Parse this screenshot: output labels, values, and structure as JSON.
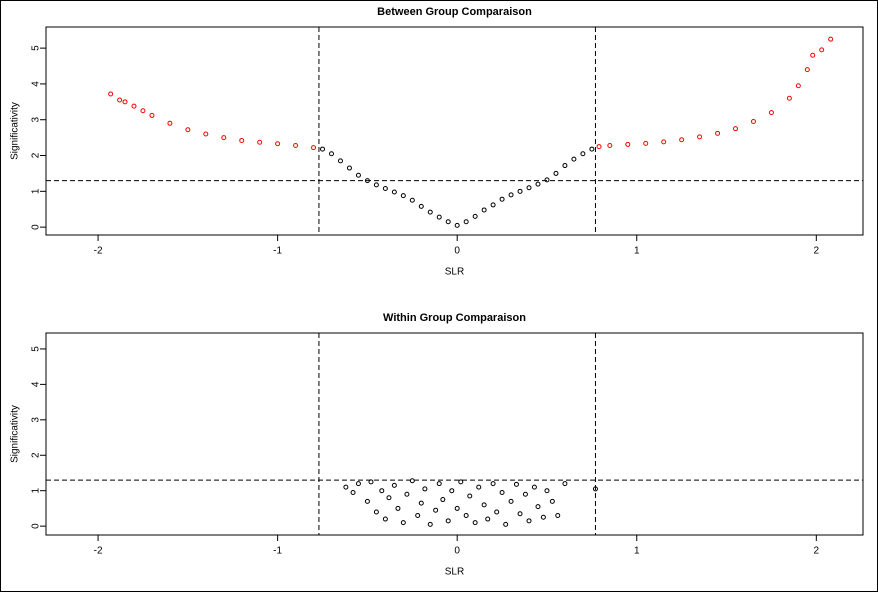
{
  "chart_data": [
    {
      "type": "scatter",
      "title": "Between Group Comparaison",
      "x_label": "SLR",
      "y_label": "Significativity",
      "xlim": [
        -2.29,
        2.26
      ],
      "ylim": [
        -0.22,
        5.59
      ],
      "xticks": [
        -2,
        -1,
        0,
        1,
        2
      ],
      "yticks": [
        0,
        1,
        2,
        3,
        4,
        5
      ],
      "vlines": [
        -0.77,
        0.77
      ],
      "hline": 1.3,
      "series": [
        {
          "color": "#ff0000",
          "x": [
            -1.93,
            -1.88,
            -1.85,
            -1.8,
            -1.75,
            -1.7,
            -1.6,
            -1.5,
            -1.4,
            -1.3,
            -1.2,
            -1.1,
            -1.0,
            -0.9,
            -0.8,
            0.79,
            0.85,
            0.95,
            1.05,
            1.15,
            1.25,
            1.35,
            1.45,
            1.55,
            1.65,
            1.75,
            1.85,
            1.9,
            1.95,
            1.98,
            2.03,
            2.08
          ],
          "values": [
            3.72,
            3.55,
            3.5,
            3.38,
            3.25,
            3.12,
            2.9,
            2.72,
            2.6,
            2.5,
            2.42,
            2.37,
            2.33,
            2.28,
            2.22,
            2.25,
            2.28,
            2.31,
            2.34,
            2.38,
            2.44,
            2.52,
            2.62,
            2.75,
            2.95,
            3.2,
            3.6,
            3.95,
            4.4,
            4.8,
            4.95,
            5.25
          ]
        },
        {
          "color": "#000000",
          "x": [
            -0.75,
            -0.7,
            -0.65,
            -0.6,
            -0.55,
            -0.5,
            -0.45,
            -0.4,
            -0.35,
            -0.3,
            -0.25,
            -0.2,
            -0.15,
            -0.1,
            -0.05,
            0,
            0.05,
            0.1,
            0.15,
            0.2,
            0.25,
            0.3,
            0.35,
            0.4,
            0.45,
            0.5,
            0.55,
            0.6,
            0.65,
            0.7,
            0.75
          ],
          "values": [
            2.18,
            2.05,
            1.85,
            1.65,
            1.45,
            1.3,
            1.18,
            1.08,
            0.98,
            0.88,
            0.75,
            0.58,
            0.42,
            0.28,
            0.15,
            0.05,
            0.15,
            0.3,
            0.48,
            0.62,
            0.78,
            0.9,
            1.0,
            1.1,
            1.2,
            1.32,
            1.5,
            1.72,
            1.9,
            2.05,
            2.18
          ]
        }
      ]
    },
    {
      "type": "scatter",
      "title": "Within Group Comparaison",
      "x_label": "SLR",
      "y_label": "Significativity",
      "xlim": [
        -2.29,
        2.26
      ],
      "ylim": [
        -0.25,
        5.45
      ],
      "xticks": [
        -2,
        -1,
        0,
        1,
        2
      ],
      "yticks": [
        0,
        1,
        2,
        3,
        4,
        5
      ],
      "vlines": [
        -0.77,
        0.77
      ],
      "hline": 1.3,
      "series": [
        {
          "color": "#000000",
          "x": [
            -0.62,
            -0.58,
            -0.55,
            -0.5,
            -0.48,
            -0.45,
            -0.42,
            -0.4,
            -0.38,
            -0.35,
            -0.33,
            -0.3,
            -0.28,
            -0.25,
            -0.22,
            -0.2,
            -0.18,
            -0.15,
            -0.12,
            -0.1,
            -0.08,
            -0.05,
            -0.03,
            0,
            0.02,
            0.05,
            0.07,
            0.1,
            0.12,
            0.15,
            0.17,
            0.2,
            0.22,
            0.25,
            0.27,
            0.3,
            0.33,
            0.35,
            0.38,
            0.4,
            0.43,
            0.45,
            0.48,
            0.5,
            0.53,
            0.56,
            0.6,
            0.77
          ],
          "values": [
            1.1,
            0.95,
            1.2,
            0.7,
            1.25,
            0.4,
            1.0,
            0.2,
            0.8,
            1.15,
            0.5,
            0.1,
            0.9,
            1.28,
            0.3,
            0.65,
            1.05,
            0.05,
            0.45,
            1.2,
            0.75,
            0.15,
            1.0,
            0.5,
            1.25,
            0.3,
            0.85,
            0.1,
            1.1,
            0.6,
            0.2,
            1.2,
            0.4,
            0.95,
            0.05,
            0.7,
            1.18,
            0.35,
            0.9,
            0.15,
            1.1,
            0.55,
            0.25,
            1.0,
            0.7,
            0.3,
            1.2,
            1.05
          ]
        }
      ]
    }
  ]
}
